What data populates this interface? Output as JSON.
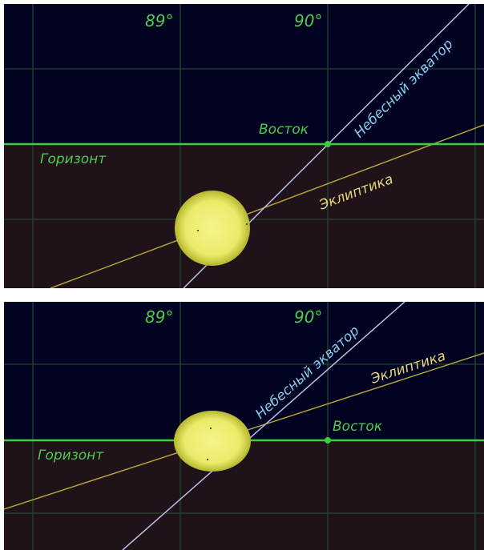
{
  "colors": {
    "sky": "#020320",
    "ground": "#1f1218",
    "grid": "#23452f",
    "horizon": "#3fcc3f",
    "green_text": "#4ecb4e",
    "equator": "#b9bfe6",
    "equator_text": "#86ccec",
    "ecliptic": "#b2a23c",
    "ecliptic_text": "#e7d679",
    "sun_core": "#f4f58a",
    "sun_edge": "#b5b62e"
  },
  "panels": [
    {
      "longitude_labels": [
        "89°",
        "90°"
      ],
      "horizon_label": "Горизонт",
      "east_label": "Восток",
      "equator_label": "Небесный экватор",
      "ecliptic_label": "Эклиптика"
    },
    {
      "longitude_labels": [
        "89°",
        "90°"
      ],
      "horizon_label": "Горизонт",
      "east_label": "Восток",
      "equator_label": "Небесный экватор",
      "ecliptic_label": "Эклиптика"
    }
  ]
}
